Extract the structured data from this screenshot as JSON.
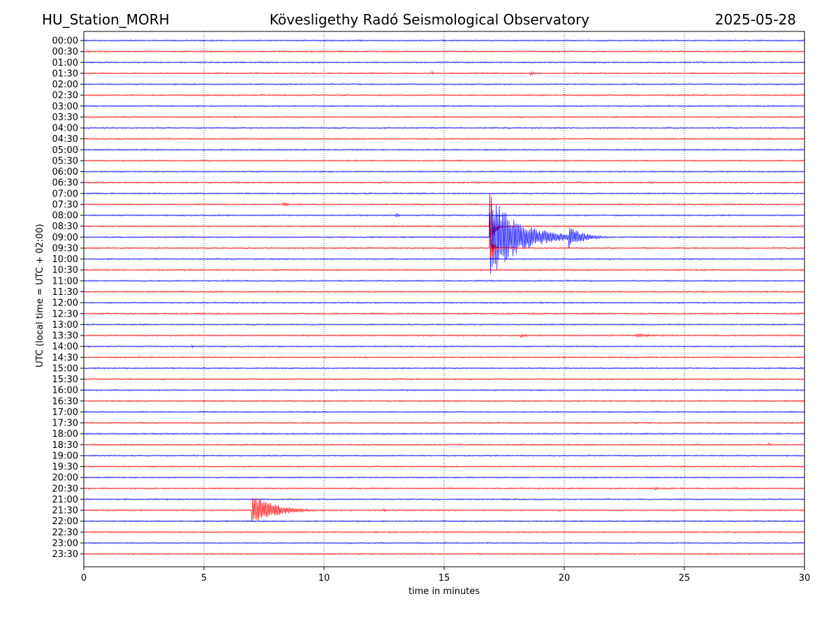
{
  "header": {
    "station": "HU_Station_MORH",
    "observatory": "Kövesligethy Radó Seismological Observatory",
    "date": "2025-05-28"
  },
  "chart_data": {
    "type": "line",
    "title": "Kövesligethy Radó Seismological Observatory",
    "xlabel": "time in minutes",
    "ylabel": "UTC (local time = UTC + 02:00)",
    "xlim": [
      0,
      30
    ],
    "x_ticks": [
      0,
      5,
      10,
      15,
      20,
      25,
      30
    ],
    "grid": "vertical dotted at x ticks",
    "row_labels": [
      "00:00",
      "00:30",
      "01:00",
      "01:30",
      "02:00",
      "02:30",
      "03:00",
      "03:30",
      "04:00",
      "04:30",
      "05:00",
      "05:30",
      "06:00",
      "06:30",
      "07:00",
      "07:30",
      "08:00",
      "08:30",
      "09:00",
      "09:30",
      "10:00",
      "10:30",
      "11:00",
      "11:30",
      "12:00",
      "12:30",
      "13:00",
      "13:30",
      "14:00",
      "14:30",
      "15:00",
      "15:30",
      "16:00",
      "16:30",
      "17:00",
      "17:30",
      "18:00",
      "18:30",
      "19:00",
      "19:30",
      "20:00",
      "20:30",
      "21:00",
      "21:30",
      "22:00",
      "22:30",
      "23:00",
      "23:30"
    ],
    "row_colors": [
      "#0000ff",
      "#ff0000"
    ],
    "noise_amplitude": 1.2,
    "events": [
      {
        "row": "01:30",
        "t": 14.5,
        "amp": 3,
        "dur": 0.3
      },
      {
        "row": "01:30",
        "t": 18.6,
        "amp": 3,
        "dur": 0.8
      },
      {
        "row": "07:30",
        "t": 8.3,
        "amp": 4,
        "dur": 0.8
      },
      {
        "row": "08:00",
        "t": 13.0,
        "amp": 4,
        "dur": 0.4
      },
      {
        "row": "08:30",
        "t": 16.9,
        "amp": 48,
        "dur": 0.5
      },
      {
        "row": "09:00",
        "t": 16.9,
        "amp": 62,
        "dur": 4.0
      },
      {
        "row": "09:00",
        "t": 20.2,
        "amp": 16,
        "dur": 2.0
      },
      {
        "row": "09:30",
        "t": 16.9,
        "amp": 32,
        "dur": 0.4
      },
      {
        "row": "13:30",
        "t": 18.2,
        "amp": 3,
        "dur": 1.0
      },
      {
        "row": "13:30",
        "t": 23.0,
        "amp": 3,
        "dur": 2.5
      },
      {
        "row": "14:00",
        "t": 4.5,
        "amp": 3,
        "dur": 0.4
      },
      {
        "row": "18:30",
        "t": 28.5,
        "amp": 3,
        "dur": 0.4
      },
      {
        "row": "20:30",
        "t": 23.8,
        "amp": 3,
        "dur": 0.4
      },
      {
        "row": "21:30",
        "t": 7.0,
        "amp": 26,
        "dur": 2.8
      },
      {
        "row": "21:30",
        "t": 12.5,
        "amp": 3,
        "dur": 0.3
      }
    ]
  }
}
